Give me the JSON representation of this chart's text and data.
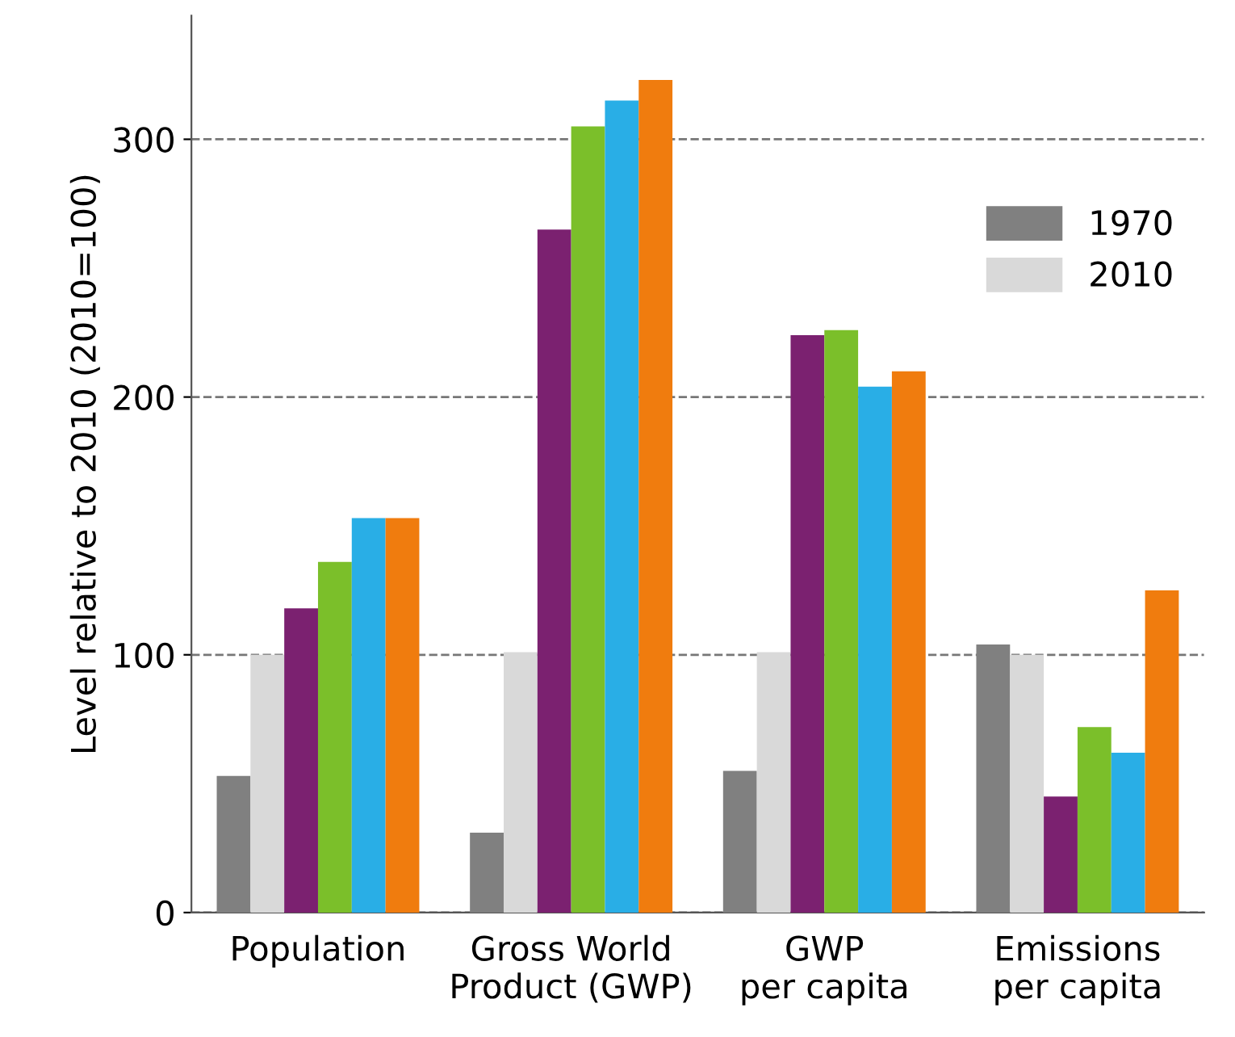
{
  "chart_data": {
    "type": "bar",
    "ylabel": "Level relative to 2010 (2010=100)",
    "categories": [
      "Population",
      "Gross World\nProduct (GWP)",
      "GWP\nper capita",
      "Emissions\nper capita"
    ],
    "series": [
      {
        "name": "1970",
        "color": "#808080",
        "values": [
          53,
          31,
          55,
          104
        ]
      },
      {
        "name": "2010",
        "color": "#d9d9d9",
        "values": [
          100,
          101,
          101,
          100
        ]
      },
      {
        "color": "#7b2170",
        "values": [
          118,
          265,
          224,
          45
        ]
      },
      {
        "color": "#7bbf2a",
        "values": [
          136,
          305,
          226,
          72
        ]
      },
      {
        "color": "#29aee6",
        "values": [
          153,
          315,
          204,
          62
        ]
      },
      {
        "color": "#f07c0e",
        "values": [
          153,
          323,
          210,
          125
        ]
      }
    ],
    "ylim": [
      0,
      348
    ],
    "yticks": [
      0,
      100,
      200,
      300
    ],
    "grid": "y",
    "legend": "top right"
  }
}
